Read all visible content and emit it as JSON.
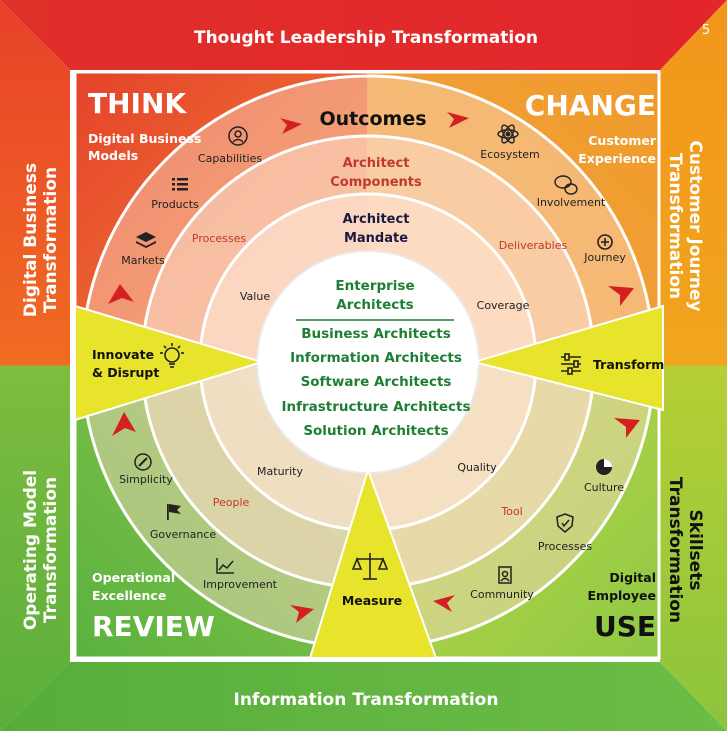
{
  "page_number": "5",
  "bands": {
    "top": "Thought Leadership Transformation",
    "bottom": "Information Transformation",
    "left_top": [
      "Digital Business",
      "Transformation"
    ],
    "left_bottom": [
      "Operating Model",
      "Transformation"
    ],
    "right_top": [
      "Customer Journey",
      "Transformation"
    ],
    "right_bottom": [
      "Skillsets",
      "Transformation"
    ]
  },
  "quadrants": {
    "think": {
      "title": "THINK",
      "sub": [
        "Digital Business",
        "Models"
      ]
    },
    "change": {
      "title": "CHANGE",
      "sub": [
        "Customer",
        "Experience"
      ]
    },
    "review": {
      "title": "REVIEW",
      "sub": [
        "Operational",
        "Excellence"
      ]
    },
    "use": {
      "title": "USE",
      "sub": [
        "Digital",
        "Employee"
      ]
    }
  },
  "rings": {
    "outer_title": "Outcomes",
    "middle_title": [
      "Architect",
      "Components"
    ],
    "inner_title": [
      "Architect",
      "Mandate"
    ],
    "middle_labels": {
      "processes": "Processes",
      "deliverables": "Deliverables",
      "people": "People",
      "tool": "Tool"
    },
    "inner_labels": {
      "value": "Value",
      "coverage": "Coverage",
      "maturity": "Maturity",
      "quality": "Quality"
    }
  },
  "nodes": {
    "capabilities": "Capabilities",
    "products": "Products",
    "markets": "Markets",
    "ecosystem": "Ecosystem",
    "involvement": "Involvement",
    "journey": "Journey",
    "simplicity": "Simplicity",
    "governance": "Governance",
    "improvement": "Improvement",
    "culture": "Culture",
    "processes": "Processes",
    "community": "Community"
  },
  "center": {
    "heading": [
      "Enterprise",
      "Architects"
    ],
    "list": [
      "Business Architects",
      "Information Architects",
      "Software Architects",
      "Infrastructure Architects",
      "Solution Architects"
    ]
  },
  "wedges": {
    "left": [
      "Innovate",
      "& Disrupt"
    ],
    "right": "Transform",
    "bottom": "Measure"
  },
  "colors": {
    "red": "#e52d2d",
    "orange": "#ef7d1a",
    "green": "#6cbd45",
    "yellow": "#e9e52a",
    "center_green": "#1e7e34"
  },
  "icons": [
    "gear-person-icon",
    "list-icon",
    "layers-icon",
    "atom-icon",
    "chat-bubbles-icon",
    "plus-circle-icon",
    "compass-icon",
    "flag-icon",
    "line-chart-icon",
    "pie-chart-icon",
    "shield-check-icon",
    "document-icon",
    "lightbulb-icon",
    "sliders-icon",
    "scales-icon",
    "red-arrow-icon"
  ]
}
